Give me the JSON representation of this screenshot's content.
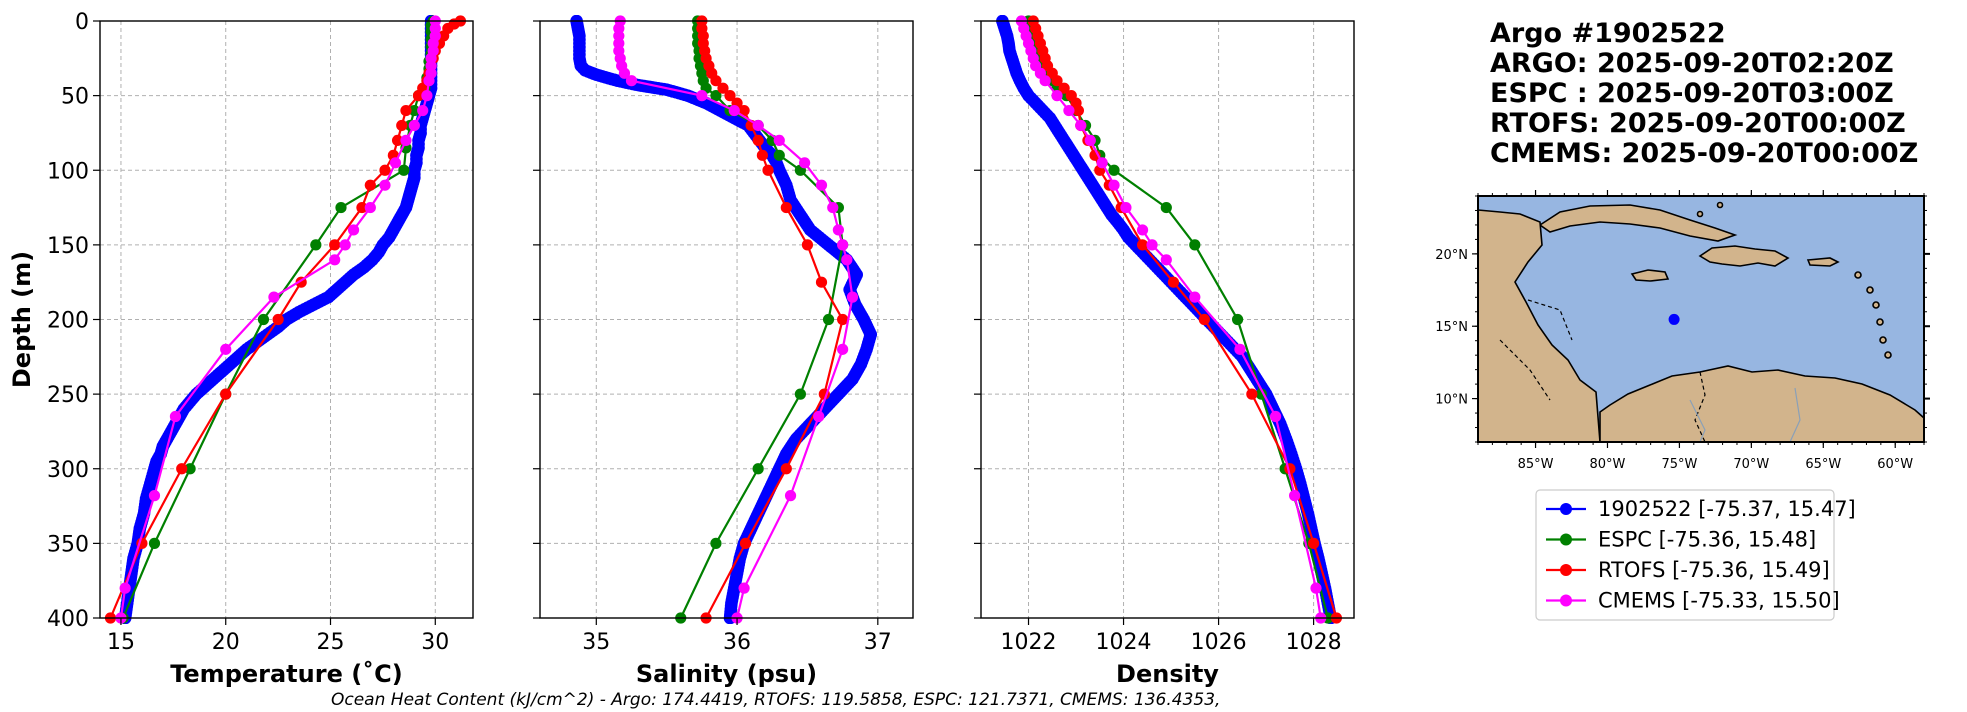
{
  "colors": {
    "argo": "#0000ff",
    "espc": "#008000",
    "rtofs": "#ff0000",
    "cmems": "#ff00ff",
    "ocean": "#97b6e1",
    "land": "#d2b48c"
  },
  "info": {
    "title": "Argo #1902522",
    "argo_time": "ARGO: 2025-09-20T02:20Z",
    "espc_time": "ESPC : 2025-09-20T03:00Z",
    "rtofs_time": "RTOFS: 2025-09-20T00:00Z",
    "cmems_time": "CMEMS: 2025-09-20T00:00Z"
  },
  "footer": {
    "ohc_text": "Ocean Heat Content (kJ/cm^2) - Argo: 174.4419,  RTOFS: 119.5858,  ESPC: 121.7371,  CMEMS: 136.4353,"
  },
  "map": {
    "lat_labels": [
      "20°N",
      "15°N",
      "10°N"
    ],
    "lat_values": [
      20,
      15,
      10
    ],
    "lon_labels": [
      "85°W",
      "80°W",
      "75°W",
      "70°W",
      "65°W",
      "60°W"
    ],
    "lon_values": [
      -85,
      -80,
      -75,
      -70,
      -65,
      -60
    ],
    "extent": {
      "lon": [
        -89,
        -58
      ],
      "lat": [
        7,
        24
      ]
    },
    "float_position": {
      "lon": -75.37,
      "lat": 15.47
    }
  },
  "chart_data": [
    {
      "type": "line",
      "panel": "temperature",
      "xlabel": "Temperature (˚C)",
      "ylabel": "Depth (m)",
      "xlim": [
        14,
        31.8
      ],
      "ylim": [
        400,
        0
      ],
      "xticks": [
        15,
        20,
        25,
        30
      ],
      "yticks": [
        0,
        50,
        100,
        150,
        200,
        250,
        300,
        350,
        400
      ],
      "series": [
        {
          "name": "1902522 [-75.37, 15.47]",
          "key": "argo",
          "depth": [
            0,
            5,
            10,
            15,
            20,
            25,
            30,
            35,
            40,
            45,
            50,
            55,
            60,
            65,
            70,
            75,
            80,
            85,
            90,
            95,
            100,
            105,
            110,
            115,
            120,
            125,
            130,
            135,
            140,
            145,
            150,
            155,
            160,
            165,
            170,
            175,
            180,
            185,
            190,
            195,
            200,
            205,
            210,
            215,
            220,
            225,
            230,
            235,
            240,
            245,
            250,
            255,
            260,
            265,
            270,
            275,
            280,
            285,
            290,
            295,
            300,
            310,
            320,
            330,
            340,
            350,
            360,
            370,
            380,
            390,
            400
          ],
          "values": [
            29.8,
            29.8,
            29.8,
            29.8,
            29.8,
            29.8,
            29.8,
            29.8,
            29.8,
            29.8,
            29.7,
            29.6,
            29.5,
            29.4,
            29.3,
            29.3,
            29.2,
            29.2,
            29.1,
            29.1,
            29.0,
            29.0,
            28.9,
            28.8,
            28.7,
            28.6,
            28.4,
            28.2,
            28.0,
            27.8,
            27.5,
            27.3,
            27.0,
            26.6,
            26.1,
            25.7,
            25.3,
            24.9,
            24.2,
            23.5,
            22.9,
            22.5,
            22.0,
            21.5,
            21.0,
            20.6,
            20.2,
            19.8,
            19.4,
            19.0,
            18.6,
            18.3,
            18.0,
            17.8,
            17.6,
            17.4,
            17.2,
            17.0,
            16.9,
            16.7,
            16.6,
            16.4,
            16.2,
            16.1,
            15.9,
            15.8,
            15.6,
            15.5,
            15.4,
            15.3,
            15.2
          ],
          "markers": "dense"
        },
        {
          "name": "ESPC [-75.36, 15.48]",
          "key": "espc",
          "depth": [
            0,
            3,
            7,
            12,
            17,
            22,
            27,
            32,
            38,
            45,
            50,
            60,
            70,
            85,
            100,
            125,
            150,
            200,
            250,
            300,
            350,
            400
          ],
          "values": [
            29.9,
            29.8,
            29.8,
            29.8,
            29.8,
            29.8,
            29.7,
            29.7,
            29.6,
            29.5,
            29.2,
            29.0,
            28.8,
            28.6,
            28.5,
            25.5,
            24.3,
            21.8,
            20.0,
            18.3,
            16.6,
            15.1
          ]
        },
        {
          "name": "RTOFS [-75.36, 15.49]",
          "key": "rtofs",
          "depth": [
            0,
            2,
            5,
            10,
            15,
            20,
            25,
            30,
            35,
            40,
            45,
            50,
            60,
            70,
            80,
            90,
            100,
            110,
            125,
            150,
            175,
            200,
            250,
            300,
            350,
            400
          ],
          "values": [
            31.2,
            30.9,
            30.6,
            30.4,
            30.2,
            30.0,
            29.9,
            29.8,
            29.7,
            29.6,
            29.4,
            29.2,
            28.6,
            28.4,
            28.2,
            28.0,
            27.6,
            26.9,
            26.5,
            25.2,
            23.6,
            22.5,
            20.0,
            17.9,
            16.0,
            14.5
          ]
        },
        {
          "name": "CMEMS [-75.33, 15.50]",
          "key": "cmems",
          "depth": [
            0,
            5,
            10,
            15,
            20,
            25,
            30,
            35,
            40,
            50,
            60,
            70,
            80,
            95,
            110,
            125,
            140,
            150,
            160,
            185,
            220,
            265,
            318,
            380,
            400
          ],
          "values": [
            30.0,
            30.0,
            30.0,
            29.9,
            29.9,
            29.8,
            29.8,
            29.8,
            29.7,
            29.6,
            29.4,
            29.0,
            28.6,
            28.1,
            27.6,
            26.9,
            26.1,
            25.7,
            25.2,
            22.3,
            20.0,
            17.6,
            16.6,
            15.2,
            15.0
          ]
        }
      ]
    },
    {
      "type": "line",
      "panel": "salinity",
      "xlabel": "Salinity (psu)",
      "ylabel": "",
      "xlim": [
        34.6,
        37.25
      ],
      "ylim": [
        400,
        0
      ],
      "xticks": [
        35,
        36,
        37
      ],
      "series": [
        {
          "name": "1902522 [-75.37, 15.47]",
          "key": "argo",
          "depth": [
            0,
            5,
            10,
            15,
            20,
            25,
            30,
            33,
            36,
            40,
            43,
            46,
            50,
            55,
            60,
            65,
            70,
            75,
            80,
            85,
            90,
            95,
            100,
            110,
            120,
            130,
            140,
            150,
            160,
            170,
            180,
            190,
            200,
            210,
            220,
            230,
            240,
            250,
            260,
            270,
            280,
            290,
            300,
            310,
            320,
            330,
            340,
            350,
            360,
            370,
            380,
            390,
            400
          ],
          "values": [
            34.86,
            34.87,
            34.88,
            34.88,
            34.88,
            34.88,
            34.89,
            34.92,
            35.0,
            35.15,
            35.3,
            35.5,
            35.65,
            35.78,
            35.88,
            35.98,
            36.08,
            36.12,
            36.16,
            36.2,
            36.25,
            36.28,
            36.3,
            36.35,
            36.38,
            36.45,
            36.52,
            36.65,
            36.78,
            36.85,
            36.8,
            36.84,
            36.9,
            36.95,
            36.92,
            36.88,
            36.82,
            36.72,
            36.62,
            36.52,
            36.42,
            36.35,
            36.3,
            36.25,
            36.2,
            36.15,
            36.1,
            36.05,
            36.02,
            36.0,
            35.98,
            35.96,
            35.95
          ],
          "markers": "dense"
        },
        {
          "name": "ESPC [-75.36, 15.48]",
          "key": "espc",
          "depth": [
            0,
            5,
            10,
            15,
            20,
            25,
            30,
            35,
            40,
            45,
            50,
            60,
            70,
            80,
            90,
            100,
            125,
            150,
            200,
            250,
            300,
            350,
            400
          ],
          "values": [
            35.72,
            35.72,
            35.72,
            35.72,
            35.73,
            35.73,
            35.74,
            35.75,
            35.76,
            35.78,
            35.85,
            35.95,
            36.15,
            36.25,
            36.3,
            36.45,
            36.72,
            36.75,
            36.65,
            36.45,
            36.15,
            35.85,
            35.6
          ]
        },
        {
          "name": "RTOFS [-75.36, 15.49]",
          "key": "rtofs",
          "depth": [
            0,
            5,
            10,
            15,
            20,
            25,
            30,
            35,
            40,
            45,
            50,
            55,
            60,
            70,
            80,
            90,
            100,
            125,
            150,
            175,
            200,
            250,
            300,
            350,
            400
          ],
          "values": [
            35.75,
            35.75,
            35.76,
            35.76,
            35.77,
            35.78,
            35.8,
            35.82,
            35.85,
            35.9,
            35.95,
            36.0,
            36.05,
            36.1,
            36.15,
            36.18,
            36.22,
            36.35,
            36.5,
            36.6,
            36.75,
            36.62,
            36.35,
            36.06,
            35.78
          ]
        },
        {
          "name": "CMEMS [-75.33, 15.50]",
          "key": "cmems",
          "depth": [
            0,
            5,
            10,
            15,
            20,
            25,
            30,
            35,
            40,
            50,
            60,
            70,
            80,
            95,
            110,
            125,
            140,
            150,
            160,
            185,
            220,
            265,
            318,
            380,
            400
          ],
          "values": [
            35.17,
            35.16,
            35.16,
            35.16,
            35.16,
            35.17,
            35.18,
            35.2,
            35.25,
            35.75,
            35.98,
            36.15,
            36.3,
            36.48,
            36.6,
            36.68,
            36.72,
            36.75,
            36.78,
            36.82,
            36.75,
            36.58,
            36.38,
            36.05,
            36.0
          ]
        }
      ]
    },
    {
      "type": "line",
      "panel": "density",
      "xlabel": "Density",
      "ylabel": "",
      "xlim": [
        1021.0,
        1028.85
      ],
      "ylim": [
        400,
        0
      ],
      "xticks": [
        1022,
        1024,
        1026,
        1028
      ],
      "series": [
        {
          "name": "1902522 [-75.37, 15.47]",
          "key": "argo",
          "depth": [
            0,
            5,
            10,
            15,
            20,
            25,
            30,
            35,
            40,
            45,
            50,
            55,
            60,
            65,
            70,
            75,
            80,
            85,
            90,
            95,
            100,
            105,
            110,
            115,
            120,
            125,
            130,
            135,
            140,
            145,
            150,
            155,
            160,
            165,
            170,
            175,
            180,
            185,
            190,
            195,
            200,
            205,
            210,
            215,
            220,
            225,
            230,
            235,
            240,
            245,
            250,
            260,
            270,
            280,
            290,
            300,
            310,
            320,
            330,
            340,
            350,
            360,
            370,
            380,
            390,
            400
          ],
          "values": [
            1021.45,
            1021.5,
            1021.55,
            1021.58,
            1021.6,
            1021.65,
            1021.7,
            1021.75,
            1021.82,
            1021.9,
            1022.0,
            1022.15,
            1022.3,
            1022.45,
            1022.55,
            1022.65,
            1022.75,
            1022.85,
            1022.95,
            1023.05,
            1023.15,
            1023.25,
            1023.35,
            1023.45,
            1023.55,
            1023.65,
            1023.75,
            1023.88,
            1024.0,
            1024.1,
            1024.25,
            1024.4,
            1024.55,
            1024.7,
            1024.85,
            1025.0,
            1025.15,
            1025.3,
            1025.45,
            1025.6,
            1025.75,
            1025.9,
            1026.05,
            1026.2,
            1026.35,
            1026.5,
            1026.6,
            1026.7,
            1026.8,
            1026.9,
            1027.0,
            1027.15,
            1027.3,
            1027.42,
            1027.53,
            1027.63,
            1027.72,
            1027.8,
            1027.88,
            1027.95,
            1028.02,
            1028.1,
            1028.17,
            1028.24,
            1028.3,
            1028.36
          ],
          "markers": "dense"
        },
        {
          "name": "ESPC [-75.36, 15.48]",
          "key": "espc",
          "depth": [
            0,
            5,
            10,
            15,
            20,
            25,
            30,
            35,
            40,
            45,
            50,
            60,
            70,
            80,
            90,
            100,
            125,
            150,
            200,
            250,
            300,
            350,
            400
          ],
          "values": [
            1022.0,
            1022.05,
            1022.1,
            1022.15,
            1022.2,
            1022.25,
            1022.3,
            1022.4,
            1022.5,
            1022.6,
            1022.8,
            1023.0,
            1023.2,
            1023.4,
            1023.5,
            1023.8,
            1024.9,
            1025.5,
            1026.4,
            1026.9,
            1027.4,
            1027.9,
            1028.3
          ]
        },
        {
          "name": "RTOFS [-75.36, 15.49]",
          "key": "rtofs",
          "depth": [
            0,
            5,
            10,
            15,
            20,
            25,
            30,
            35,
            40,
            45,
            50,
            55,
            60,
            70,
            80,
            90,
            100,
            110,
            125,
            150,
            175,
            200,
            250,
            300,
            350,
            400
          ],
          "values": [
            1022.1,
            1022.15,
            1022.2,
            1022.25,
            1022.3,
            1022.35,
            1022.4,
            1022.5,
            1022.6,
            1022.75,
            1022.9,
            1023.0,
            1023.05,
            1023.1,
            1023.25,
            1023.4,
            1023.5,
            1023.7,
            1023.95,
            1024.4,
            1025.05,
            1025.7,
            1026.7,
            1027.5,
            1028.0,
            1028.48
          ]
        },
        {
          "name": "CMEMS [-75.33, 15.50]",
          "key": "cmems",
          "depth": [
            0,
            5,
            10,
            15,
            20,
            25,
            30,
            35,
            40,
            50,
            60,
            70,
            80,
            95,
            110,
            125,
            140,
            150,
            160,
            185,
            220,
            265,
            318,
            380,
            400
          ],
          "values": [
            1021.85,
            1021.9,
            1021.95,
            1022.0,
            1022.05,
            1022.1,
            1022.15,
            1022.25,
            1022.35,
            1022.6,
            1022.85,
            1023.1,
            1023.3,
            1023.55,
            1023.8,
            1024.05,
            1024.4,
            1024.6,
            1024.9,
            1025.5,
            1026.45,
            1027.2,
            1027.6,
            1028.05,
            1028.15
          ]
        }
      ]
    }
  ],
  "legend": {
    "items": [
      {
        "key": "argo",
        "label": "1902522 [-75.37, 15.47]"
      },
      {
        "key": "espc",
        "label": "ESPC [-75.36, 15.48]"
      },
      {
        "key": "rtofs",
        "label": "RTOFS [-75.36, 15.49]"
      },
      {
        "key": "cmems",
        "label": "CMEMS [-75.33, 15.50]"
      }
    ]
  }
}
